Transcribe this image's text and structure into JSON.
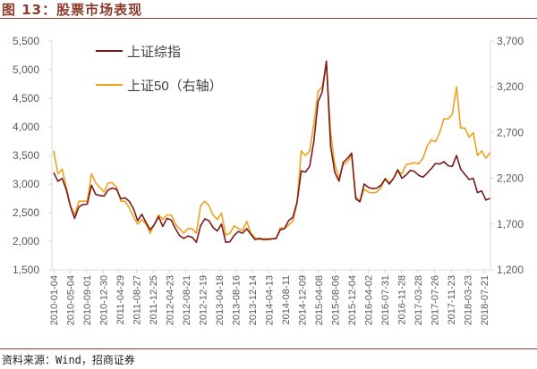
{
  "header": {
    "title": "图 13：股票市场表现"
  },
  "footer": {
    "source": "资料来源：Wind，招商证券"
  },
  "chart_data": {
    "type": "line",
    "title": "股票市场表现",
    "start_month": "2010-01",
    "y_left": {
      "lim": [
        1500,
        5500
      ],
      "ticks": [
        "1,500",
        "2,000",
        "2,500",
        "3,000",
        "3,500",
        "4,000",
        "4,500",
        "5,000",
        "5,500"
      ]
    },
    "y_right": {
      "lim": [
        1200,
        3700
      ],
      "ticks": [
        "1,200",
        "1,700",
        "2,200",
        "2,700",
        "3,200",
        "3,700"
      ]
    },
    "x_ticks": [
      "2010-01-04",
      "2010-05-04",
      "2010-09-01",
      "2010-12-30",
      "2011-04-29",
      "2011-08-27",
      "2011-12-25",
      "2012-04-23",
      "2012-08-21",
      "2012-12-19",
      "2013-04-18",
      "2013-08-16",
      "2013-12-14",
      "2014-04-13",
      "2014-08-11",
      "2014-12-09",
      "2015-04-08",
      "2015-08-06",
      "2015-12-04",
      "2016-04-02",
      "2016-07-31",
      "2016-11-28",
      "2017-03-28",
      "2017-07-26",
      "2017-11-23",
      "2018-03-23",
      "2018-07-21"
    ],
    "legend_position": "top-left",
    "series": [
      {
        "name": "上证综指",
        "axis": "left",
        "color": "#7b1a1a",
        "values": [
          3200,
          3050,
          3100,
          2900,
          2600,
          2400,
          2600,
          2640,
          2650,
          2980,
          2820,
          2800,
          2790,
          2900,
          2930,
          2910,
          2740,
          2760,
          2700,
          2570,
          2360,
          2470,
          2330,
          2200,
          2290,
          2430,
          2260,
          2400,
          2370,
          2220,
          2100,
          2050,
          2090,
          2070,
          1980,
          2270,
          2390,
          2360,
          2240,
          2180,
          2300,
          1980,
          1990,
          2100,
          2170,
          2140,
          2220,
          2120,
          2030,
          2050,
          2030,
          2030,
          2040,
          2050,
          2200,
          2220,
          2360,
          2420,
          2680,
          3230,
          3210,
          3310,
          3750,
          4440,
          4610,
          5150,
          3660,
          3200,
          3050,
          3380,
          3450,
          3540,
          2740,
          2690,
          3000,
          2940,
          2920,
          2930,
          2980,
          3090,
          3000,
          3100,
          3250,
          3100,
          3160,
          3240,
          3220,
          3150,
          3120,
          3190,
          3270,
          3360,
          3350,
          3390,
          3320,
          3310,
          3500,
          3260,
          3170,
          3080,
          3100,
          2850,
          2880,
          2720,
          2750
        ]
      },
      {
        "name": "上证50（右轴）",
        "axis": "right",
        "color": "#f0a020",
        "values": [
          2500,
          2250,
          2300,
          2100,
          1900,
          1800,
          1950,
          1950,
          1950,
          2250,
          2150,
          2100,
          2050,
          2150,
          2150,
          2100,
          1950,
          1950,
          1880,
          1780,
          1700,
          1750,
          1700,
          1600,
          1700,
          1800,
          1750,
          1800,
          1800,
          1700,
          1650,
          1600,
          1650,
          1650,
          1600,
          1900,
          1950,
          1900,
          1800,
          1750,
          1820,
          1580,
          1600,
          1680,
          1650,
          1630,
          1730,
          1600,
          1550,
          1530,
          1540,
          1540,
          1540,
          1540,
          1660,
          1650,
          1690,
          1730,
          1930,
          2500,
          2450,
          2500,
          2800,
          3150,
          3200,
          3450,
          2700,
          2350,
          2200,
          2350,
          2380,
          2450,
          2000,
          1950,
          2080,
          2050,
          2040,
          2050,
          2100,
          2200,
          2150,
          2200,
          2280,
          2250,
          2350,
          2360,
          2370,
          2360,
          2420,
          2550,
          2620,
          2600,
          2700,
          2850,
          2850,
          2900,
          3200,
          2750,
          2750,
          2650,
          2700,
          2450,
          2500,
          2420,
          2480
        ]
      }
    ]
  }
}
